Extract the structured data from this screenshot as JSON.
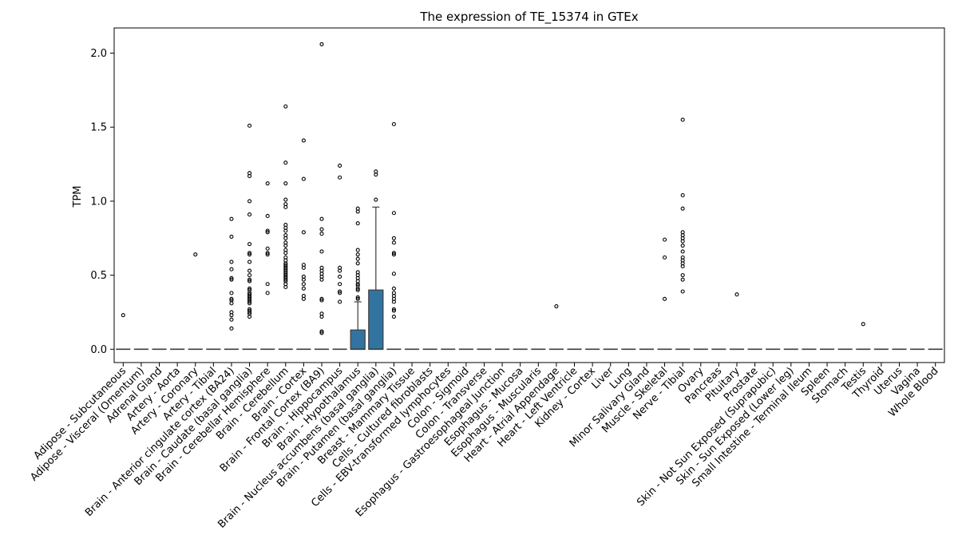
{
  "chart_data": {
    "type": "box",
    "title": "The expression of TE_15374 in GTEx",
    "xlabel": "",
    "ylabel": "TPM",
    "ylim": [
      -0.09,
      2.17
    ],
    "yticks": [
      0.0,
      0.5,
      1.0,
      1.5,
      2.0
    ],
    "ytick_labels": [
      "0.0",
      "0.5",
      "1.0",
      "1.5",
      "2.0"
    ],
    "box_color": "#3274a1",
    "categories": [
      "Adipose - Subcutaneous",
      "Adipose - Visceral (Omentum)",
      "Adrenal Gland",
      "Artery - Aorta",
      "Artery - Coronary",
      "Artery - Tibial",
      "Brain - Anterior cingulate cortex (BA24)",
      "Brain - Caudate (basal ganglia)",
      "Brain - Cerebellar Hemisphere",
      "Brain - Cerebellum",
      "Brain - Cortex",
      "Brain - Frontal Cortex (BA9)",
      "Brain - Hippocampus",
      "Brain - Hypothalamus",
      "Brain - Nucleus accumbens (basal ganglia)",
      "Brain - Putamen (basal ganglia)",
      "Breast - Mammary Tissue",
      "Cells - Cultured fibroblasts",
      "Cells - EBV-transformed lymphocytes",
      "Colon - Sigmoid",
      "Colon - Transverse",
      "Esophagus - Gastroesophageal Junction",
      "Esophagus - Mucosa",
      "Esophagus - Muscularis",
      "Heart - Atrial Appendage",
      "Heart - Left Ventricle",
      "Kidney - Cortex",
      "Liver",
      "Lung",
      "Minor Salivary Gland",
      "Muscle - Skeletal",
      "Nerve - Tibial",
      "Ovary",
      "Pancreas",
      "Pituitary",
      "Prostate",
      "Skin - Not Sun Exposed (Suprapubic)",
      "Skin - Sun Exposed (Lower leg)",
      "Small Intestine - Terminal Ileum",
      "Spleen",
      "Stomach",
      "Testis",
      "Thyroid",
      "Uterus",
      "Vagina",
      "Whole Blood"
    ],
    "boxes": [
      {
        "q1": 0,
        "median": 0,
        "q3": 0,
        "whisker_low": 0,
        "whisker_high": 0,
        "outliers": [
          0.23
        ]
      },
      {
        "q1": 0,
        "median": 0,
        "q3": 0,
        "whisker_low": 0,
        "whisker_high": 0,
        "outliers": []
      },
      {
        "q1": 0,
        "median": 0,
        "q3": 0,
        "whisker_low": 0,
        "whisker_high": 0,
        "outliers": []
      },
      {
        "q1": 0,
        "median": 0,
        "q3": 0,
        "whisker_low": 0,
        "whisker_high": 0,
        "outliers": []
      },
      {
        "q1": 0,
        "median": 0,
        "q3": 0,
        "whisker_low": 0,
        "whisker_high": 0,
        "outliers": [
          0.64
        ]
      },
      {
        "q1": 0,
        "median": 0,
        "q3": 0,
        "whisker_low": 0,
        "whisker_high": 0,
        "outliers": []
      },
      {
        "q1": 0,
        "median": 0,
        "q3": 0,
        "whisker_low": 0,
        "whisker_high": 0,
        "outliers": [
          0.88,
          0.76,
          0.59,
          0.54,
          0.48,
          0.47,
          0.38,
          0.34,
          0.33,
          0.31,
          0.25,
          0.23,
          0.2,
          0.14
        ]
      },
      {
        "q1": 0,
        "median": 0,
        "q3": 0,
        "whisker_low": 0,
        "whisker_high": 0,
        "outliers": [
          1.51,
          1.19,
          1.17,
          1.0,
          0.91,
          0.71,
          0.65,
          0.64,
          0.59,
          0.53,
          0.5,
          0.47,
          0.46,
          0.41,
          0.4,
          0.38,
          0.37,
          0.36,
          0.35,
          0.34,
          0.33,
          0.32,
          0.31,
          0.27,
          0.26,
          0.25,
          0.24,
          0.22
        ]
      },
      {
        "q1": 0,
        "median": 0,
        "q3": 0,
        "whisker_low": 0,
        "whisker_high": 0,
        "outliers": [
          1.12,
          0.9,
          0.8,
          0.79,
          0.68,
          0.65,
          0.64,
          0.44,
          0.38
        ]
      },
      {
        "q1": 0,
        "median": 0,
        "q3": 0,
        "whisker_low": 0,
        "whisker_high": 0,
        "outliers": [
          1.64,
          1.26,
          1.12,
          1.01,
          0.98,
          0.96,
          0.84,
          0.82,
          0.8,
          0.77,
          0.75,
          0.72,
          0.7,
          0.67,
          0.65,
          0.62,
          0.6,
          0.58,
          0.57,
          0.56,
          0.55,
          0.54,
          0.53,
          0.52,
          0.51,
          0.5,
          0.49,
          0.48,
          0.47,
          0.46,
          0.44,
          0.42
        ]
      },
      {
        "q1": 0,
        "median": 0,
        "q3": 0,
        "whisker_low": 0,
        "whisker_high": 0,
        "outliers": [
          1.41,
          1.15,
          0.79,
          0.57,
          0.55,
          0.49,
          0.47,
          0.44,
          0.41,
          0.36,
          0.34
        ]
      },
      {
        "q1": 0,
        "median": 0,
        "q3": 0,
        "whisker_low": 0,
        "whisker_high": 0,
        "outliers": [
          2.06,
          0.88,
          0.81,
          0.78,
          0.66,
          0.55,
          0.53,
          0.51,
          0.49,
          0.47,
          0.34,
          0.33,
          0.24,
          0.22,
          0.12,
          0.11
        ]
      },
      {
        "q1": 0,
        "median": 0,
        "q3": 0,
        "whisker_low": 0,
        "whisker_high": 0,
        "outliers": [
          1.24,
          1.16,
          0.55,
          0.53,
          0.49,
          0.44,
          0.39,
          0.38,
          0.32
        ]
      },
      {
        "q1": 0,
        "median": 0,
        "q3": 0.13,
        "whisker_low": 0,
        "whisker_high": 0.32,
        "outliers": [
          0.95,
          0.93,
          0.85,
          0.67,
          0.64,
          0.61,
          0.58,
          0.52,
          0.5,
          0.48,
          0.46,
          0.44,
          0.43,
          0.41,
          0.4,
          0.35,
          0.34
        ]
      },
      {
        "q1": 0,
        "median": 0,
        "q3": 0.4,
        "whisker_low": 0,
        "whisker_high": 0.96,
        "outliers": [
          1.2,
          1.18,
          1.01
        ]
      },
      {
        "q1": 0,
        "median": 0,
        "q3": 0,
        "whisker_low": 0,
        "whisker_high": 0,
        "outliers": [
          1.52,
          0.92,
          0.75,
          0.72,
          0.65,
          0.64,
          0.51,
          0.41,
          0.38,
          0.36,
          0.34,
          0.32,
          0.27,
          0.26,
          0.22
        ]
      },
      {
        "q1": 0,
        "median": 0,
        "q3": 0,
        "whisker_low": 0,
        "whisker_high": 0,
        "outliers": []
      },
      {
        "q1": 0,
        "median": 0,
        "q3": 0,
        "whisker_low": 0,
        "whisker_high": 0,
        "outliers": []
      },
      {
        "q1": 0,
        "median": 0,
        "q3": 0,
        "whisker_low": 0,
        "whisker_high": 0,
        "outliers": []
      },
      {
        "q1": 0,
        "median": 0,
        "q3": 0,
        "whisker_low": 0,
        "whisker_high": 0,
        "outliers": []
      },
      {
        "q1": 0,
        "median": 0,
        "q3": 0,
        "whisker_low": 0,
        "whisker_high": 0,
        "outliers": []
      },
      {
        "q1": 0,
        "median": 0,
        "q3": 0,
        "whisker_low": 0,
        "whisker_high": 0,
        "outliers": []
      },
      {
        "q1": 0,
        "median": 0,
        "q3": 0,
        "whisker_low": 0,
        "whisker_high": 0,
        "outliers": []
      },
      {
        "q1": 0,
        "median": 0,
        "q3": 0,
        "whisker_low": 0,
        "whisker_high": 0,
        "outliers": []
      },
      {
        "q1": 0,
        "median": 0,
        "q3": 0,
        "whisker_low": 0,
        "whisker_high": 0,
        "outliers": [
          0.29
        ]
      },
      {
        "q1": 0,
        "median": 0,
        "q3": 0,
        "whisker_low": 0,
        "whisker_high": 0,
        "outliers": []
      },
      {
        "q1": 0,
        "median": 0,
        "q3": 0,
        "whisker_low": 0,
        "whisker_high": 0,
        "outliers": []
      },
      {
        "q1": 0,
        "median": 0,
        "q3": 0,
        "whisker_low": 0,
        "whisker_high": 0,
        "outliers": []
      },
      {
        "q1": 0,
        "median": 0,
        "q3": 0,
        "whisker_low": 0,
        "whisker_high": 0,
        "outliers": []
      },
      {
        "q1": 0,
        "median": 0,
        "q3": 0,
        "whisker_low": 0,
        "whisker_high": 0,
        "outliers": []
      },
      {
        "q1": 0,
        "median": 0,
        "q3": 0,
        "whisker_low": 0,
        "whisker_high": 0,
        "outliers": [
          0.74,
          0.62,
          0.34
        ]
      },
      {
        "q1": 0,
        "median": 0,
        "q3": 0,
        "whisker_low": 0,
        "whisker_high": 0,
        "outliers": [
          1.55,
          1.04,
          0.95,
          0.79,
          0.77,
          0.75,
          0.73,
          0.7,
          0.66,
          0.62,
          0.6,
          0.58,
          0.56,
          0.5,
          0.47,
          0.39
        ]
      },
      {
        "q1": 0,
        "median": 0,
        "q3": 0,
        "whisker_low": 0,
        "whisker_high": 0,
        "outliers": []
      },
      {
        "q1": 0,
        "median": 0,
        "q3": 0,
        "whisker_low": 0,
        "whisker_high": 0,
        "outliers": []
      },
      {
        "q1": 0,
        "median": 0,
        "q3": 0,
        "whisker_low": 0,
        "whisker_high": 0,
        "outliers": [
          0.37
        ]
      },
      {
        "q1": 0,
        "median": 0,
        "q3": 0,
        "whisker_low": 0,
        "whisker_high": 0,
        "outliers": []
      },
      {
        "q1": 0,
        "median": 0,
        "q3": 0,
        "whisker_low": 0,
        "whisker_high": 0,
        "outliers": []
      },
      {
        "q1": 0,
        "median": 0,
        "q3": 0,
        "whisker_low": 0,
        "whisker_high": 0,
        "outliers": []
      },
      {
        "q1": 0,
        "median": 0,
        "q3": 0,
        "whisker_low": 0,
        "whisker_high": 0,
        "outliers": []
      },
      {
        "q1": 0,
        "median": 0,
        "q3": 0,
        "whisker_low": 0,
        "whisker_high": 0,
        "outliers": []
      },
      {
        "q1": 0,
        "median": 0,
        "q3": 0,
        "whisker_low": 0,
        "whisker_high": 0,
        "outliers": []
      },
      {
        "q1": 0,
        "median": 0,
        "q3": 0,
        "whisker_low": 0,
        "whisker_high": 0,
        "outliers": [
          0.17
        ]
      },
      {
        "q1": 0,
        "median": 0,
        "q3": 0,
        "whisker_low": 0,
        "whisker_high": 0,
        "outliers": []
      },
      {
        "q1": 0,
        "median": 0,
        "q3": 0,
        "whisker_low": 0,
        "whisker_high": 0,
        "outliers": []
      },
      {
        "q1": 0,
        "median": 0,
        "q3": 0,
        "whisker_low": 0,
        "whisker_high": 0,
        "outliers": []
      },
      {
        "q1": 0,
        "median": 0,
        "q3": 0,
        "whisker_low": 0,
        "whisker_high": 0,
        "outliers": []
      }
    ],
    "grid": false,
    "legend": "none"
  }
}
